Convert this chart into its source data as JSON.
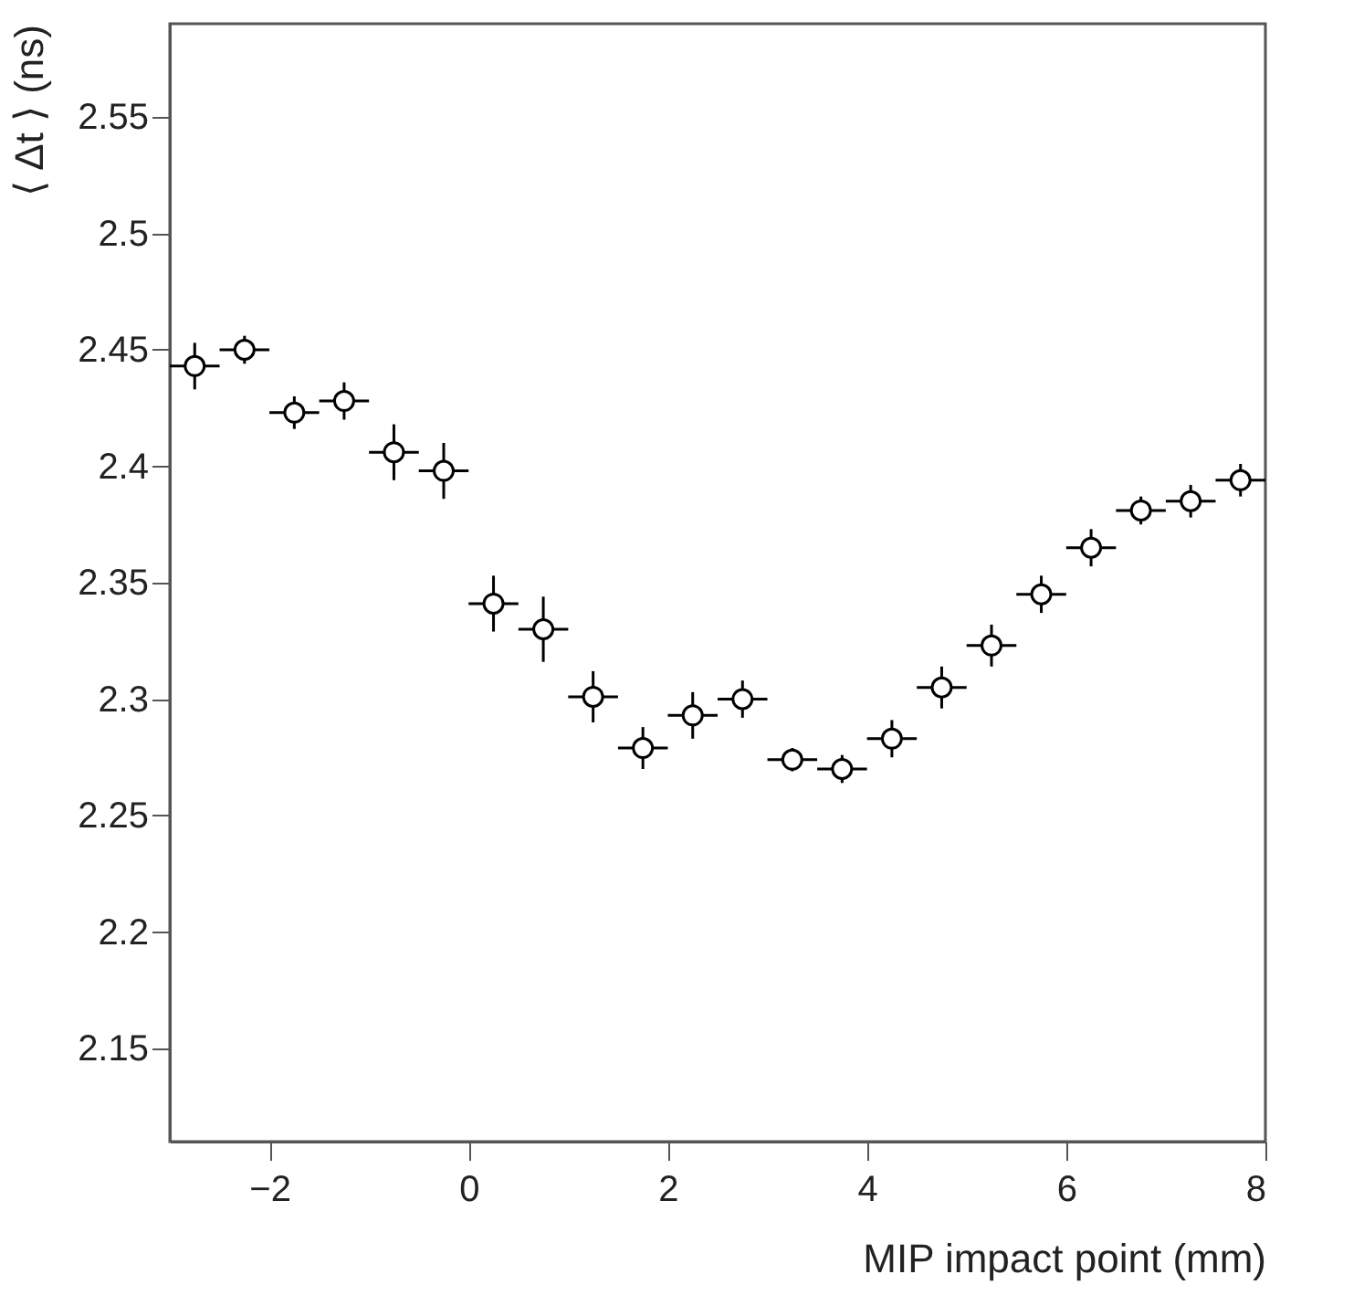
{
  "chart_data": {
    "type": "scatter",
    "xlabel": "MIP impact point (mm)",
    "ylabel": "⟨ Δt ⟩ (ns)",
    "x": [
      -2.75,
      -2.25,
      -1.75,
      -1.25,
      -0.75,
      -0.25,
      0.25,
      0.75,
      1.25,
      1.75,
      2.25,
      2.75,
      3.25,
      3.75,
      4.25,
      4.75,
      5.25,
      5.75,
      6.25,
      6.75,
      7.25,
      7.75
    ],
    "series": [
      {
        "color": "#000000",
        "values": [
          2.443,
          2.45,
          2.423,
          2.428,
          2.406,
          2.398,
          2.341,
          2.33,
          2.301,
          2.279,
          2.293,
          2.3,
          2.274,
          2.27,
          2.283,
          2.305,
          2.323,
          2.345,
          2.365,
          2.381,
          2.385,
          2.394
        ],
        "errors": [
          0.01,
          0.006,
          0.007,
          0.008,
          0.012,
          0.012,
          0.012,
          0.014,
          0.011,
          0.009,
          0.01,
          0.008,
          0.005,
          0.006,
          0.008,
          0.009,
          0.009,
          0.008,
          0.008,
          0.006,
          0.007,
          0.007
        ],
        "xerrors": [
          0.25,
          0.25,
          0.25,
          0.25,
          0.25,
          0.25,
          0.25,
          0.25,
          0.25,
          0.25,
          0.25,
          0.25,
          0.25,
          0.25,
          0.25,
          0.25,
          0.25,
          0.25,
          0.25,
          0.25,
          0.25,
          0.25
        ]
      }
    ],
    "xlim": [
      -3,
      8
    ],
    "xticks": [
      -2,
      0,
      2,
      4,
      6,
      8
    ],
    "ylim": [
      2.11,
      2.59
    ],
    "yticks": [
      2.15,
      2.2,
      2.25,
      2.3,
      2.35,
      2.4,
      2.45,
      2.5,
      2.55
    ],
    "marker": "circle",
    "grid": false
  }
}
